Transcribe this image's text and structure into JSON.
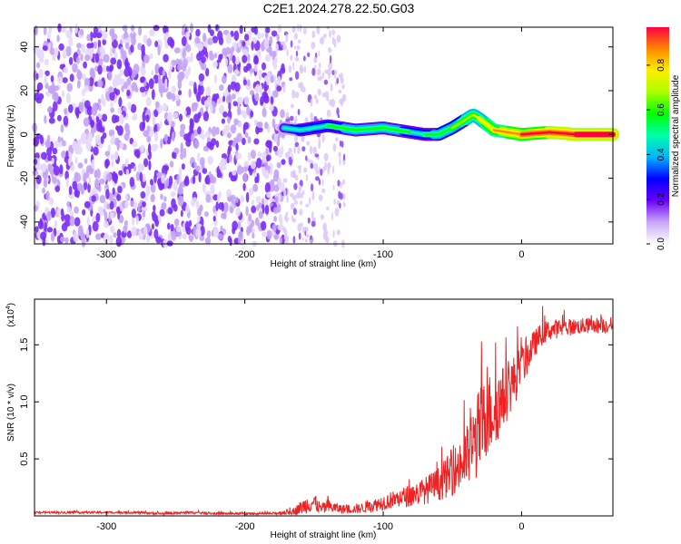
{
  "title": "C2E1.2024.278.22.50.G03",
  "chart_data": [
    {
      "type": "heatmap",
      "xlabel": "Height of straight line (km)",
      "ylabel": "Frequency (Hz)",
      "xlim": [
        -352,
        66
      ],
      "ylim": [
        -50,
        49
      ],
      "xticks": [
        -300,
        -200,
        -100,
        0
      ],
      "xtick_labels": [
        "-300",
        "-200",
        "-100",
        "0"
      ],
      "yticks": [
        -40,
        -20,
        0,
        20,
        40
      ],
      "ytick_labels": [
        "-40",
        "-20",
        "0",
        "20",
        "40"
      ],
      "colorbar": {
        "label": "Normalized spectral amplitude",
        "range": [
          0,
          0.97
        ],
        "ticks": [
          0.0,
          0.2,
          0.4,
          0.6,
          0.8
        ],
        "tick_labels": [
          "0.0",
          "0.2",
          "0.4",
          "0.6",
          "0.8"
        ]
      },
      "noise_region_end_km": -128,
      "dense_noise_end_km": -172,
      "signal_track": {
        "x": [
          -172,
          -160,
          -140,
          -120,
          -100,
          -90,
          -80,
          -70,
          -60,
          -50,
          -40,
          -35,
          -30,
          -20,
          -10,
          0,
          20,
          40,
          66
        ],
        "y": [
          3,
          2,
          4,
          2,
          3,
          2,
          1,
          0,
          0,
          3,
          7,
          9,
          7,
          2,
          1,
          0,
          1,
          0,
          0
        ],
        "peak_amplitude": [
          0.35,
          0.4,
          0.45,
          0.5,
          0.5,
          0.5,
          0.45,
          0.45,
          0.5,
          0.55,
          0.6,
          0.65,
          0.65,
          0.75,
          0.8,
          0.85,
          0.9,
          0.95,
          0.97
        ]
      }
    },
    {
      "type": "line",
      "xlabel": "Height of straight line (km)",
      "ylabel": "SNR (10 * v/v)",
      "scale_label": "(x10",
      "scale_exponent": "4",
      "xlim": [
        -352,
        66
      ],
      "ylim": [
        0,
        1.9
      ],
      "xticks": [
        -300,
        -200,
        -100,
        0
      ],
      "xtick_labels": [
        "-300",
        "-200",
        "-100",
        "0"
      ],
      "yticks": [
        0.5,
        1.0,
        1.5
      ],
      "ytick_labels": [
        "0.5",
        "1.0",
        "1.5"
      ],
      "series": [
        {
          "color": "#ee2222",
          "x": [
            -352,
            -320,
            -300,
            -280,
            -260,
            -240,
            -220,
            -200,
            -180,
            -165,
            -155,
            -150,
            -145,
            -140,
            -130,
            -120,
            -110,
            -100,
            -90,
            -80,
            -70,
            -60,
            -50,
            -40,
            -35,
            -30,
            -25,
            -20,
            -15,
            -10,
            -5,
            0,
            5,
            10,
            15,
            20,
            30,
            40,
            50,
            60,
            66
          ],
          "y": [
            0.03,
            0.03,
            0.03,
            0.03,
            0.02,
            0.03,
            0.02,
            0.02,
            0.02,
            0.04,
            0.1,
            0.12,
            0.06,
            0.08,
            0.06,
            0.06,
            0.08,
            0.12,
            0.15,
            0.18,
            0.22,
            0.28,
            0.38,
            0.5,
            0.62,
            0.75,
            0.85,
            0.95,
            1.0,
            1.1,
            1.2,
            1.3,
            1.42,
            1.52,
            1.6,
            1.63,
            1.65,
            1.66,
            1.67,
            1.67,
            1.68
          ],
          "noise": [
            0.01,
            0.01,
            0.01,
            0.01,
            0.01,
            0.01,
            0.01,
            0.01,
            0.01,
            0.03,
            0.08,
            0.08,
            0.05,
            0.06,
            0.04,
            0.04,
            0.05,
            0.07,
            0.08,
            0.1,
            0.12,
            0.15,
            0.2,
            0.28,
            0.35,
            0.4,
            0.38,
            0.35,
            0.3,
            0.25,
            0.22,
            0.2,
            0.15,
            0.12,
            0.1,
            0.09,
            0.08,
            0.07,
            0.07,
            0.07,
            0.07
          ]
        }
      ]
    }
  ]
}
